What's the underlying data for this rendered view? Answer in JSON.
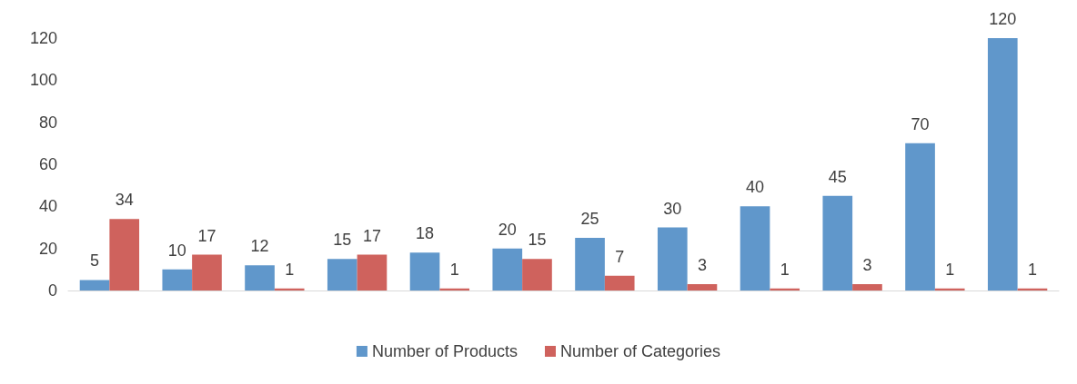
{
  "chart_data": {
    "type": "bar",
    "categories": [
      null,
      null,
      null,
      null,
      null,
      null,
      null,
      null,
      null,
      null,
      null,
      null
    ],
    "series": [
      {
        "name": "Number of Products",
        "color": "#6097cb",
        "values": [
          5,
          10,
          12,
          15,
          18,
          20,
          25,
          30,
          40,
          45,
          70,
          120
        ]
      },
      {
        "name": "Number of Categories",
        "color": "#cf625d",
        "values": [
          34,
          17,
          1,
          17,
          1,
          15,
          7,
          3,
          1,
          3,
          1,
          1
        ]
      }
    ],
    "ylim": [
      0,
      120
    ],
    "yticks": [
      0,
      20,
      40,
      60,
      80,
      100,
      120
    ],
    "grid": false,
    "legend": "bottom",
    "data_labels": true
  }
}
